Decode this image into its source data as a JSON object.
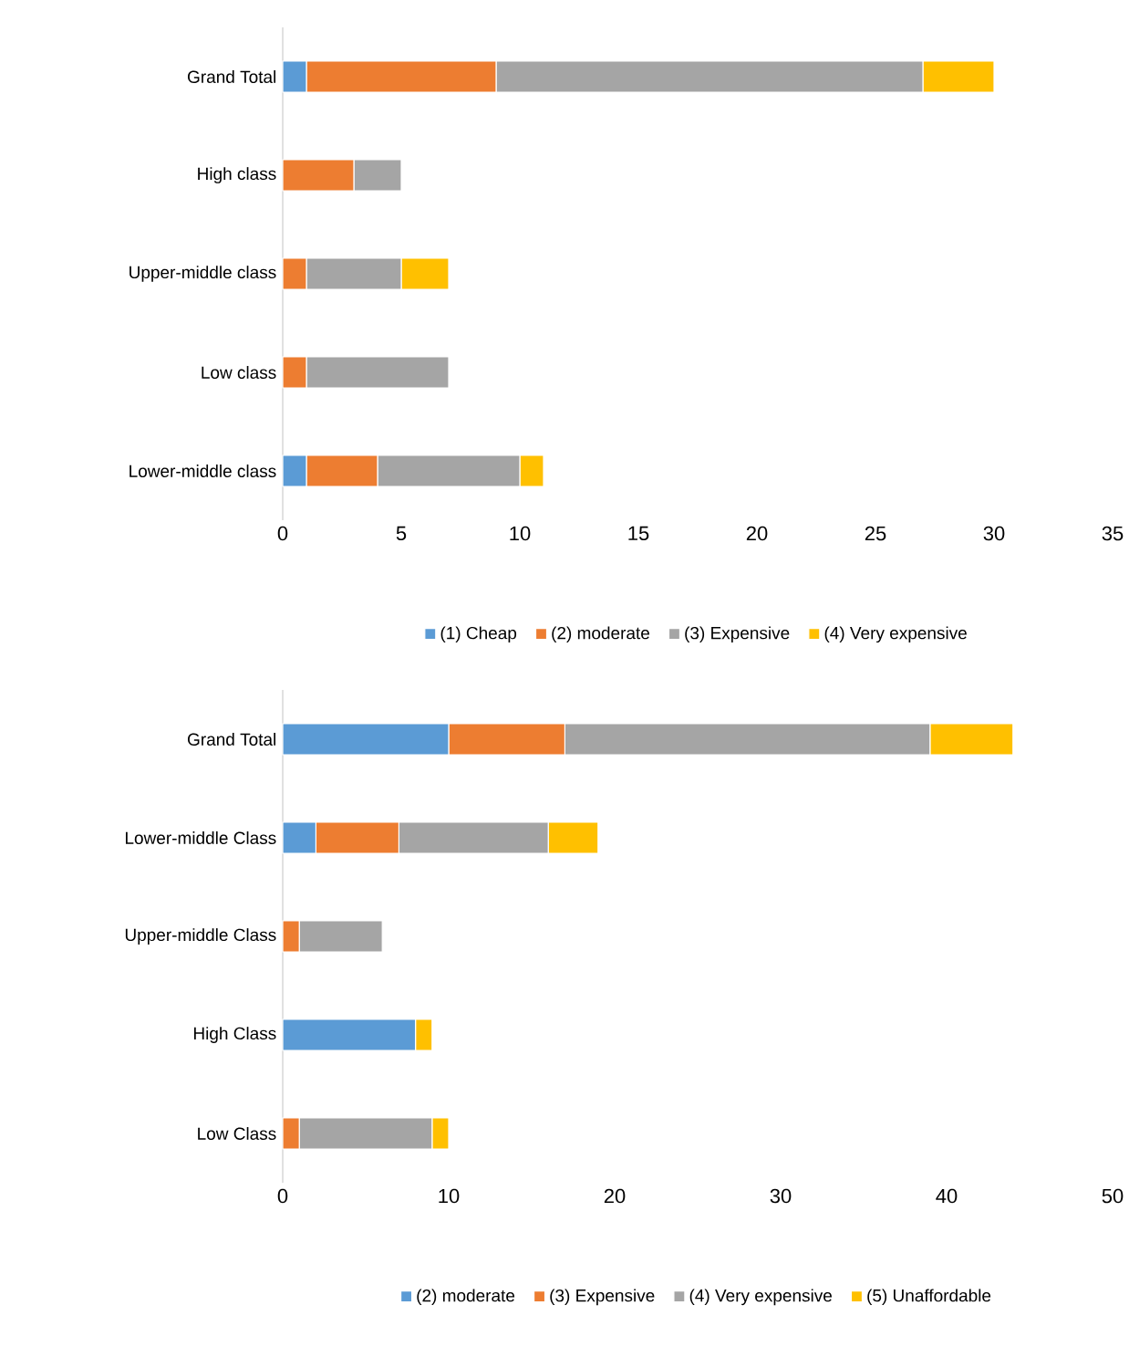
{
  "chart_data": [
    {
      "type": "bar",
      "orientation": "horizontal",
      "stacked": true,
      "legend": "bottom",
      "categories": [
        "Grand Total",
        "High class",
        "Upper-middle class",
        "Low class",
        "Lower-middle class"
      ],
      "series": [
        {
          "name": "(1) Cheap",
          "color": "#5b9bd5",
          "values": [
            1,
            null,
            null,
            null,
            1
          ]
        },
        {
          "name": "(2) moderate",
          "color": "#ed7d31",
          "values": [
            8,
            3,
            1,
            1,
            3
          ]
        },
        {
          "name": "(3) Expensive",
          "color": "#a5a5a5",
          "values": [
            18,
            2,
            4,
            6,
            6
          ]
        },
        {
          "name": "(4) Very expensive",
          "color": "#ffc000",
          "values": [
            3,
            null,
            2,
            null,
            1
          ]
        }
      ],
      "xlim": [
        0,
        35
      ],
      "xticks": [
        0,
        5,
        10,
        15,
        20,
        25,
        30,
        35
      ]
    },
    {
      "type": "bar",
      "orientation": "horizontal",
      "stacked": true,
      "legend": "bottom",
      "categories": [
        "Grand Total",
        "Lower-middle Class",
        "Upper-middle Class",
        "High Class",
        "Low Class"
      ],
      "series": [
        {
          "name": "(2) moderate",
          "color": "#5b9bd5",
          "values": [
            10,
            2,
            null,
            8,
            null
          ]
        },
        {
          "name": "(3) Expensive",
          "color": "#ed7d31",
          "values": [
            7,
            5,
            1,
            null,
            1
          ]
        },
        {
          "name": "(4) Very expensive",
          "color": "#a5a5a5",
          "values": [
            22,
            9,
            5,
            null,
            8
          ]
        },
        {
          "name": "(5) Unaffordable",
          "color": "#ffc000",
          "values": [
            5,
            3,
            null,
            1,
            1
          ]
        }
      ],
      "xlim": [
        0,
        50
      ],
      "xticks": [
        0,
        10,
        20,
        30,
        40,
        50
      ]
    }
  ]
}
